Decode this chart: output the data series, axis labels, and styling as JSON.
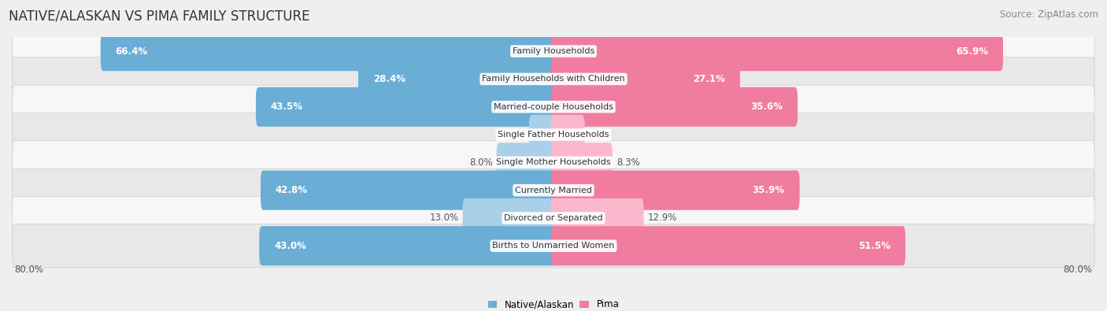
{
  "title": "NATIVE/ALASKAN VS PIMA FAMILY STRUCTURE",
  "source": "Source: ZipAtlas.com",
  "categories": [
    "Family Households",
    "Family Households with Children",
    "Married-couple Households",
    "Single Father Households",
    "Single Mother Households",
    "Currently Married",
    "Divorced or Separated",
    "Births to Unmarried Women"
  ],
  "native_values": [
    66.4,
    28.4,
    43.5,
    3.2,
    8.0,
    42.8,
    13.0,
    43.0
  ],
  "pima_values": [
    65.9,
    27.1,
    35.6,
    4.2,
    8.3,
    35.9,
    12.9,
    51.5
  ],
  "x_max": 80.0,
  "native_color": "#6aaed6",
  "pima_color": "#f07ca0",
  "native_color_light": "#aacfe8",
  "pima_color_light": "#f9b8cc",
  "bg_color": "#efefef",
  "row_bg_even": "#f7f7f7",
  "row_bg_odd": "#e8e8e8",
  "legend_native": "Native/Alaskan",
  "legend_pima": "Pima",
  "bar_height": 0.62,
  "title_fontsize": 12,
  "source_fontsize": 8.5,
  "label_fontsize": 8.5,
  "category_fontsize": 8.0,
  "axis_label_fontsize": 8.5,
  "threshold_white_label": 15
}
